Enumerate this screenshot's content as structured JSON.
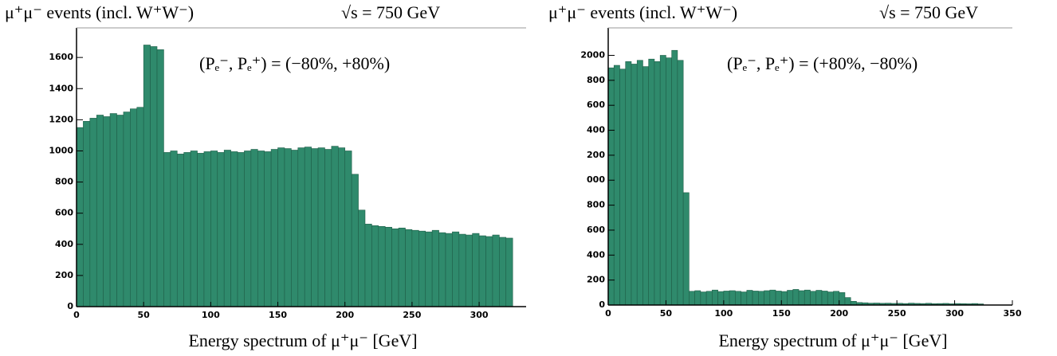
{
  "chart_data": [
    {
      "type": "histogram",
      "title": "μ⁺μ⁻ events (incl. W⁺W⁻)",
      "subtitle": "√s = 750 GeV",
      "annotation": "(Pₑ⁻, Pₑ⁺) = (−80%, +80%)",
      "xlabel": "Energy spectrum of μ⁺μ⁻ [GeV]",
      "color": "#2f8a6c",
      "bins": [
        0,
        5,
        10,
        15,
        20,
        25,
        30,
        35,
        40,
        45,
        50,
        55,
        60,
        65,
        70,
        75,
        80,
        85,
        90,
        95,
        100,
        105,
        110,
        115,
        120,
        125,
        130,
        135,
        140,
        145,
        150,
        155,
        160,
        165,
        170,
        175,
        180,
        185,
        190,
        195,
        200,
        205,
        210,
        215,
        220,
        225,
        230,
        235,
        240,
        245,
        250,
        255,
        260,
        265,
        270,
        275,
        280,
        285,
        290,
        295,
        300,
        305,
        310,
        315,
        320,
        325
      ],
      "values": [
        1150,
        1190,
        1210,
        1230,
        1220,
        1240,
        1230,
        1250,
        1270,
        1280,
        1680,
        1670,
        1650,
        990,
        1000,
        980,
        990,
        1000,
        985,
        995,
        1000,
        990,
        1005,
        995,
        990,
        1000,
        1010,
        1000,
        995,
        1010,
        1020,
        1015,
        1005,
        1020,
        1025,
        1015,
        1020,
        1010,
        1030,
        1020,
        1000,
        850,
        620,
        530,
        520,
        515,
        510,
        500,
        505,
        495,
        490,
        485,
        480,
        490,
        475,
        470,
        480,
        465,
        460,
        470,
        455,
        450,
        460,
        445,
        440
      ],
      "xlim": [
        0,
        335
      ],
      "ylim": [
        0,
        1790
      ],
      "xticks": [
        0,
        50,
        100,
        150,
        200,
        250,
        300
      ],
      "yticks": [
        0,
        200,
        400,
        600,
        800,
        1000,
        1200,
        1400,
        1600
      ]
    },
    {
      "type": "histogram",
      "title": "μ⁺μ⁻ events (incl. W⁺W⁻)",
      "subtitle": "√s = 750 GeV",
      "annotation": "(Pₑ⁻, Pₑ⁺) = (+80%, −80%)",
      "xlabel": "Energy spectrum of μ⁺μ⁻ [GeV]",
      "color": "#2f8a6c",
      "bins": [
        0,
        5,
        10,
        15,
        20,
        25,
        30,
        35,
        40,
        45,
        50,
        55,
        60,
        65,
        70,
        75,
        80,
        85,
        90,
        95,
        100,
        105,
        110,
        115,
        120,
        125,
        130,
        135,
        140,
        145,
        150,
        155,
        160,
        165,
        170,
        175,
        180,
        185,
        190,
        195,
        200,
        205,
        210,
        215,
        220,
        225,
        230,
        235,
        240,
        245,
        250,
        255,
        260,
        265,
        270,
        275,
        280,
        285,
        290,
        295,
        300,
        305,
        310,
        315,
        320,
        325
      ],
      "values": [
        1900,
        1920,
        1890,
        1950,
        1930,
        1960,
        1910,
        1970,
        1950,
        2000,
        1980,
        2040,
        1960,
        900,
        110,
        115,
        105,
        110,
        120,
        108,
        112,
        115,
        110,
        105,
        118,
        112,
        110,
        115,
        120,
        112,
        108,
        118,
        125,
        115,
        120,
        110,
        118,
        112,
        105,
        110,
        100,
        60,
        30,
        20,
        18,
        15,
        16,
        14,
        15,
        13,
        14,
        12,
        15,
        13,
        12,
        14,
        11,
        12,
        13,
        10,
        12,
        11,
        10,
        12,
        9
      ],
      "xlim": [
        0,
        350
      ],
      "ylim": [
        0,
        2220
      ],
      "xticks": [
        0,
        50,
        100,
        150,
        200,
        250,
        300,
        350
      ],
      "yticks": [
        0,
        200,
        400,
        600,
        800,
        {
          "value": 1000,
          "label": "000"
        },
        {
          "value": 1200,
          "label": "200"
        },
        {
          "value": 1400,
          "label": "400"
        },
        {
          "value": 1600,
          "label": "600"
        },
        {
          "value": 1800,
          "label": "800"
        },
        2000
      ]
    }
  ]
}
